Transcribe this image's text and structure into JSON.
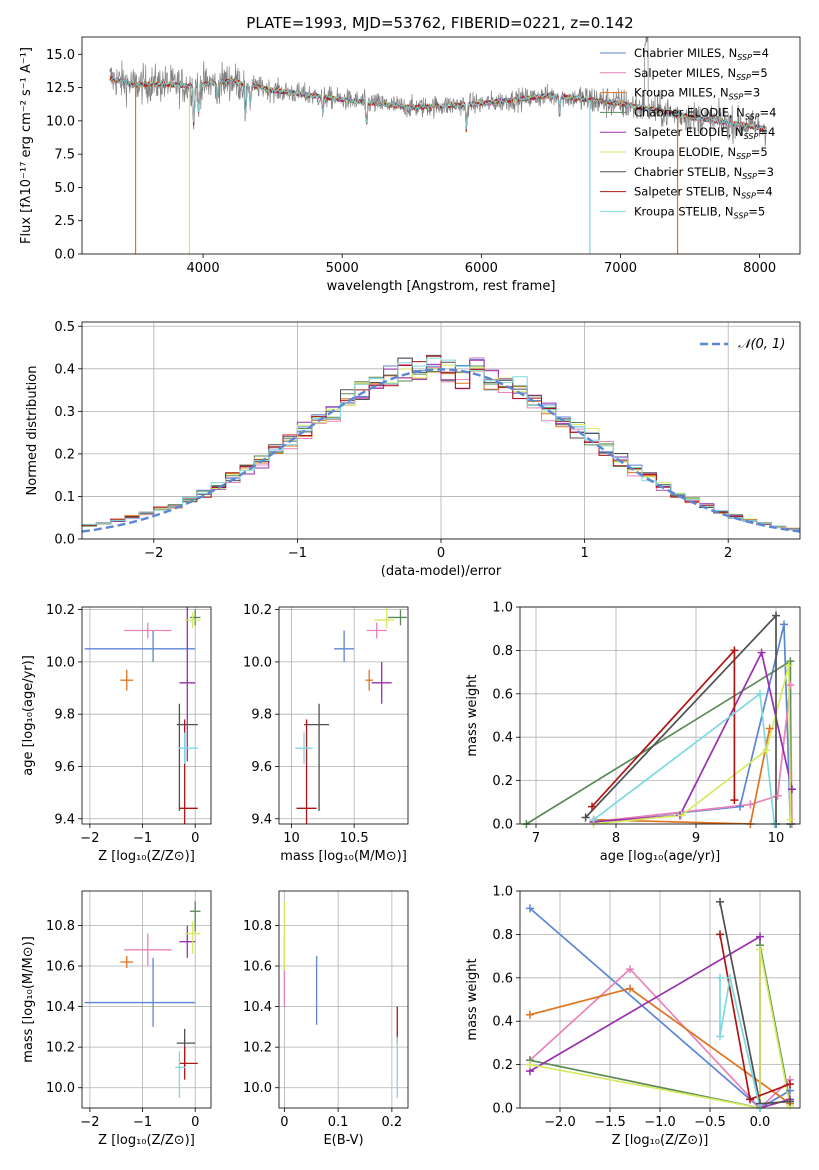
{
  "colors": {
    "Chabrier MILES": "#5b86d6",
    "Salpeter MILES": "#e883b9",
    "Kroupa MILES": "#e0731f",
    "Chabrier ELODIE": "#5a8a5a",
    "Salpeter ELODIE": "#9a2fb0",
    "Kroupa ELODIE": "#d6ea60",
    "Chabrier STELIB": "#505050",
    "Salpeter STELIB": "#b01515",
    "Kroupa STELIB": "#7fd8df",
    "observed": "#808080",
    "normal": "#5b86d6"
  },
  "legend_entries": [
    {
      "base": "Chabrier MILES, N",
      "sub": "SSP",
      "tail": "=4",
      "key": "Chabrier MILES"
    },
    {
      "base": "Salpeter MILES, N",
      "sub": "SSP",
      "tail": "=5",
      "key": "Salpeter MILES"
    },
    {
      "base": "Kroupa MILES, N",
      "sub": "SSP",
      "tail": "=3",
      "key": "Kroupa MILES"
    },
    {
      "base": "Chabrier ELODIE, N",
      "sub": "SSP",
      "tail": "=4",
      "key": "Chabrier ELODIE"
    },
    {
      "base": "Salpeter ELODIE, N",
      "sub": "SSP",
      "tail": "=4",
      "key": "Salpeter ELODIE"
    },
    {
      "base": "Kroupa ELODIE, N",
      "sub": "SSP",
      "tail": "=5",
      "key": "Kroupa ELODIE"
    },
    {
      "base": "Chabrier STELIB, N",
      "sub": "SSP",
      "tail": "=3",
      "key": "Chabrier STELIB"
    },
    {
      "base": "Salpeter STELIB, N",
      "sub": "SSP",
      "tail": "=4",
      "key": "Salpeter STELIB"
    },
    {
      "base": "Kroupa STELIB, N",
      "sub": "SSP",
      "tail": "=5",
      "key": "Kroupa STELIB"
    }
  ],
  "chart_data": [
    {
      "type": "line",
      "title": "PLATE=1993, MJD=53762, FIBERID=0221, z=0.142",
      "xlabel": "wavelength [Angstrom, rest frame]",
      "ylabel": "Flux [fλ10⁻¹⁷ erg cm⁻² s⁻¹ A⁻¹]",
      "xlim": [
        3130,
        8290
      ],
      "ylim": [
        0,
        16.3
      ],
      "xticks": [
        4000,
        5000,
        6000,
        7000,
        8000
      ],
      "yticks": [
        0.0,
        2.5,
        5.0,
        7.5,
        10.0,
        12.5,
        15.0
      ],
      "legend": "top-right",
      "spectrum_shape": {
        "x": [
          3330,
          3500,
          3700,
          3900,
          4200,
          4500,
          5000,
          5500,
          6000,
          6500,
          7000,
          7500,
          8050
        ],
        "y": [
          13.2,
          12.7,
          12.8,
          12.6,
          13.0,
          12.3,
          11.6,
          11.0,
          11.3,
          11.9,
          11.3,
          10.3,
          9.4
        ]
      },
      "absorption_lines": [
        {
          "x": 3934,
          "depth": 3.2
        },
        {
          "x": 3969,
          "depth": 2.3
        },
        {
          "x": 4102,
          "depth": 1.6
        },
        {
          "x": 4305,
          "depth": 3.0
        },
        {
          "x": 4340,
          "depth": 1.5
        },
        {
          "x": 4861,
          "depth": 1.3
        },
        {
          "x": 5175,
          "depth": 2.0
        },
        {
          "x": 5893,
          "depth": 2.0
        },
        {
          "x": 6563,
          "depth": 1.3
        }
      ],
      "model_drops": [
        {
          "x": 3515,
          "key": "Kroupa MILES"
        },
        {
          "x": 3902,
          "key": "Kroupa ELODIE"
        },
        {
          "x": 6780,
          "key": "Kroupa STELIB"
        },
        {
          "x": 7410,
          "key": "Kroupa MILES"
        }
      ]
    },
    {
      "type": "histogram",
      "xlabel": "(data-model)/error",
      "ylabel": "Normed distribution",
      "xlim": [
        -2.5,
        2.5
      ],
      "ylim": [
        0,
        0.51
      ],
      "xticks": [
        -2,
        -1,
        0,
        1,
        2
      ],
      "yticks": [
        0.0,
        0.1,
        0.2,
        0.3,
        0.4,
        0.5
      ],
      "grid": true,
      "legend": "top-right",
      "normal_label": "𝒩(0, 1)",
      "bin_width": 0.1,
      "x_start": -2.5
    },
    {
      "type": "scatter",
      "xlabel": "Z [log₁₀(Z/Z⊙)]",
      "ylabel": "age  [log₁₀(age/yr)]",
      "xlim": [
        -2.15,
        0.3
      ],
      "ylim": [
        9.38,
        10.21
      ],
      "xticks": [
        -2,
        -1,
        0
      ],
      "yticks": [
        9.4,
        9.6,
        9.8,
        10.0,
        10.2
      ],
      "grid": true,
      "points": [
        {
          "key": "Chabrier MILES",
          "x": -0.8,
          "y": 10.05,
          "xerr": [
            1.3,
            0.8
          ],
          "yerr": [
            0.05,
            0.07
          ]
        },
        {
          "key": "Salpeter MILES",
          "x": -0.9,
          "y": 10.12,
          "xerr": [
            0.45,
            0.45
          ],
          "yerr": [
            0.03,
            0.03
          ]
        },
        {
          "key": "Kroupa MILES",
          "x": -1.3,
          "y": 9.93,
          "xerr": [
            0.12,
            0.12
          ],
          "yerr": [
            0.04,
            0.04
          ]
        },
        {
          "key": "Chabrier ELODIE",
          "x": 0.0,
          "y": 10.17,
          "xerr": [
            0.1,
            0.1
          ],
          "yerr": [
            0.03,
            0.03
          ]
        },
        {
          "key": "Salpeter ELODIE",
          "x": -0.15,
          "y": 9.92,
          "xerr": [
            0.15,
            0.15
          ],
          "yerr": [
            0.3,
            0.3
          ]
        },
        {
          "key": "Kroupa ELODIE",
          "x": -0.05,
          "y": 10.16,
          "xerr": [
            0.15,
            0.15
          ],
          "yerr": [
            0.03,
            0.03
          ]
        },
        {
          "key": "Chabrier STELIB",
          "x": -0.3,
          "y": 9.76,
          "xerr": [
            0.05,
            0.35
          ],
          "yerr": [
            0.33,
            0.08
          ]
        },
        {
          "key": "Salpeter STELIB",
          "x": -0.2,
          "y": 9.44,
          "xerr": [
            0.1,
            0.25
          ],
          "yerr": [
            0.06,
            0.34
          ]
        },
        {
          "key": "Kroupa STELIB",
          "x": -0.2,
          "y": 9.67,
          "xerr": [
            0.12,
            0.25
          ],
          "yerr": [
            0.06,
            0.06
          ]
        }
      ]
    },
    {
      "type": "scatter",
      "xlabel": "mass [log₁₀(M/M⊙)]",
      "ylabel": "",
      "xlim": [
        9.9,
        10.93
      ],
      "ylim": [
        9.38,
        10.21
      ],
      "xticks": [
        10.0,
        10.5
      ],
      "yticks": [
        9.4,
        9.6,
        9.8,
        10.0,
        10.2
      ],
      "grid": true,
      "points": [
        {
          "key": "Chabrier MILES",
          "x": 10.42,
          "y": 10.05,
          "xerr": [
            0.08,
            0.08
          ],
          "yerr": [
            0.05,
            0.07
          ]
        },
        {
          "key": "Salpeter MILES",
          "x": 10.68,
          "y": 10.12,
          "xerr": [
            0.08,
            0.08
          ],
          "yerr": [
            0.03,
            0.03
          ]
        },
        {
          "key": "Kroupa MILES",
          "x": 10.62,
          "y": 9.93,
          "xerr": [
            0.03,
            0.03
          ],
          "yerr": [
            0.04,
            0.04
          ]
        },
        {
          "key": "Chabrier ELODIE",
          "x": 10.87,
          "y": 10.17,
          "xerr": [
            0.1,
            0.05
          ],
          "yerr": [
            0.03,
            0.03
          ]
        },
        {
          "key": "Salpeter ELODIE",
          "x": 10.72,
          "y": 9.92,
          "xerr": [
            0.08,
            0.08
          ],
          "yerr": [
            0.08,
            0.08
          ]
        },
        {
          "key": "Kroupa ELODIE",
          "x": 10.76,
          "y": 10.16,
          "xerr": [
            0.1,
            0.06
          ],
          "yerr": [
            0.03,
            0.18
          ]
        },
        {
          "key": "Chabrier STELIB",
          "x": 10.22,
          "y": 9.76,
          "xerr": [
            0.12,
            0.08
          ],
          "yerr": [
            0.33,
            0.08
          ]
        },
        {
          "key": "Salpeter STELIB",
          "x": 10.12,
          "y": 9.44,
          "xerr": [
            0.08,
            0.08
          ],
          "yerr": [
            0.06,
            0.34
          ]
        },
        {
          "key": "Kroupa STELIB",
          "x": 10.1,
          "y": 9.67,
          "xerr": [
            0.07,
            0.07
          ],
          "yerr": [
            0.06,
            0.06
          ]
        }
      ]
    },
    {
      "type": "line",
      "xlabel": "age  [log₁₀(age/yr)]",
      "ylabel": "mass weight",
      "xlim": [
        6.8,
        10.3
      ],
      "ylim": [
        0,
        1.0
      ],
      "xticks": [
        7,
        8,
        9,
        10
      ],
      "yticks": [
        0.0,
        0.2,
        0.4,
        0.6,
        0.8,
        1.0
      ],
      "grid": true,
      "series": [
        {
          "key": "Chabrier MILES",
          "x": [
            7.72,
            9.55,
            10.1,
            10.18
          ],
          "y": [
            0.01,
            0.08,
            0.92,
            0.0
          ]
        },
        {
          "key": "Salpeter MILES",
          "x": [
            7.72,
            9.68,
            10.02,
            10.18,
            10.2
          ],
          "y": [
            0.01,
            0.09,
            0.13,
            0.64,
            0.0
          ]
        },
        {
          "key": "Kroupa MILES",
          "x": [
            7.72,
            9.68,
            9.92
          ],
          "y": [
            0.02,
            0.0,
            0.44
          ]
        },
        {
          "key": "Chabrier ELODIE",
          "x": [
            6.88,
            10.18,
            10.18
          ],
          "y": [
            0.0,
            0.75,
            0.0
          ]
        },
        {
          "key": "Salpeter ELODIE",
          "x": [
            7.72,
            8.8,
            9.82,
            10.2
          ],
          "y": [
            0.01,
            0.04,
            0.79,
            0.16
          ]
        },
        {
          "key": "Kroupa ELODIE",
          "x": [
            7.72,
            8.82,
            9.88,
            10.16,
            10.18
          ],
          "y": [
            0.0,
            0.04,
            0.34,
            0.73,
            0.02
          ]
        },
        {
          "key": "Chabrier STELIB",
          "x": [
            7.62,
            10.0,
            10.0
          ],
          "y": [
            0.03,
            0.96,
            0.0
          ]
        },
        {
          "key": "Salpeter STELIB",
          "x": [
            7.7,
            9.48,
            9.48
          ],
          "y": [
            0.08,
            0.8,
            0.11
          ]
        },
        {
          "key": "Kroupa STELIB",
          "x": [
            7.72,
            9.8,
            9.98
          ],
          "y": [
            0.02,
            0.6,
            0.0
          ]
        }
      ]
    },
    {
      "type": "scatter",
      "xlabel": "Z [log₁₀(Z/Z⊙)]",
      "ylabel": "mass [log₁₀(M/M⊙)]",
      "xlim": [
        -2.15,
        0.3
      ],
      "ylim": [
        9.9,
        10.97
      ],
      "xticks": [
        -2,
        -1,
        0
      ],
      "yticks": [
        10.0,
        10.2,
        10.4,
        10.6,
        10.8
      ],
      "grid": true,
      "points": [
        {
          "key": "Chabrier MILES",
          "x": -0.8,
          "y": 10.42,
          "xerr": [
            1.3,
            0.8
          ],
          "yerr": [
            0.12,
            0.22
          ]
        },
        {
          "key": "Salpeter MILES",
          "x": -0.9,
          "y": 10.68,
          "xerr": [
            0.45,
            0.45
          ],
          "yerr": [
            0.08,
            0.08
          ]
        },
        {
          "key": "Kroupa MILES",
          "x": -1.3,
          "y": 10.62,
          "xerr": [
            0.12,
            0.12
          ],
          "yerr": [
            0.03,
            0.03
          ]
        },
        {
          "key": "Chabrier ELODIE",
          "x": 0.0,
          "y": 10.87,
          "xerr": [
            0.1,
            0.1
          ],
          "yerr": [
            0.1,
            0.05
          ]
        },
        {
          "key": "Salpeter ELODIE",
          "x": -0.15,
          "y": 10.72,
          "xerr": [
            0.15,
            0.15
          ],
          "yerr": [
            0.08,
            0.08
          ]
        },
        {
          "key": "Kroupa ELODIE",
          "x": -0.05,
          "y": 10.76,
          "xerr": [
            0.15,
            0.15
          ],
          "yerr": [
            0.1,
            0.06
          ]
        },
        {
          "key": "Chabrier STELIB",
          "x": -0.2,
          "y": 10.22,
          "xerr": [
            0.15,
            0.2
          ],
          "yerr": [
            0.12,
            0.07
          ]
        },
        {
          "key": "Salpeter STELIB",
          "x": -0.2,
          "y": 10.12,
          "xerr": [
            0.1,
            0.25
          ],
          "yerr": [
            0.08,
            0.08
          ]
        },
        {
          "key": "Kroupa STELIB",
          "x": -0.3,
          "y": 10.1,
          "xerr": [
            0.08,
            0.12
          ],
          "yerr": [
            0.15,
            0.08
          ]
        }
      ]
    },
    {
      "type": "scatter",
      "xlabel": "E(B-V)",
      "ylabel": "",
      "xlim": [
        -0.01,
        0.23
      ],
      "ylim": [
        9.9,
        10.97
      ],
      "xticks": [
        0.0,
        0.1,
        0.2
      ],
      "yticks": [
        10.0,
        10.2,
        10.4,
        10.6,
        10.8
      ],
      "grid": true,
      "points": [
        {
          "key": "Chabrier MILES",
          "x": 0.06,
          "y": 10.48,
          "xerr": [
            0,
            0
          ],
          "yerr": [
            0.17,
            0.17
          ]
        },
        {
          "key": "Salpeter MILES",
          "x": 0.0,
          "y": 10.55,
          "xerr": [
            0,
            0
          ],
          "yerr": [
            0.15,
            0.2
          ]
        },
        {
          "key": "Kroupa ELODIE",
          "x": 0.0,
          "y": 10.75,
          "xerr": [
            0,
            0
          ],
          "yerr": [
            0.17,
            0.17
          ]
        },
        {
          "key": "Salpeter STELIB",
          "x": 0.21,
          "y": 10.3,
          "xerr": [
            0,
            0
          ],
          "yerr": [
            0.08,
            0.1
          ]
        },
        {
          "key": "Kroupa STELIB",
          "x": 0.21,
          "y": 10.1,
          "xerr": [
            0,
            0
          ],
          "yerr": [
            0.15,
            0.15
          ]
        }
      ]
    },
    {
      "type": "line",
      "xlabel": "Z [log₁₀(Z/Z⊙)]",
      "ylabel": "mass weight",
      "xlim": [
        -2.4,
        0.4
      ],
      "ylim": [
        0,
        1.0
      ],
      "xticks": [
        -2.0,
        -1.5,
        -1.0,
        -0.5,
        0.0
      ],
      "yticks": [
        0.0,
        0.2,
        0.4,
        0.6,
        0.8,
        1.0
      ],
      "grid": true,
      "series": [
        {
          "key": "Chabrier MILES",
          "x": [
            -2.3,
            0.0,
            0.3
          ],
          "y": [
            0.92,
            0.0,
            0.08
          ]
        },
        {
          "key": "Salpeter MILES",
          "x": [
            -2.3,
            -1.3,
            0.0,
            0.3
          ],
          "y": [
            0.22,
            0.64,
            0.0,
            0.13
          ]
        },
        {
          "key": "Kroupa MILES",
          "x": [
            -2.3,
            -1.3,
            0.3
          ],
          "y": [
            0.43,
            0.55,
            0.02
          ]
        },
        {
          "key": "Chabrier ELODIE",
          "x": [
            -2.3,
            0.0,
            0.0,
            0.3
          ],
          "y": [
            0.22,
            0.0,
            0.75,
            0.03
          ]
        },
        {
          "key": "Salpeter ELODIE",
          "x": [
            -2.3,
            0.0,
            0.0,
            0.3
          ],
          "y": [
            0.17,
            0.79,
            0.0,
            0.04
          ]
        },
        {
          "key": "Kroupa ELODIE",
          "x": [
            -2.3,
            0.0,
            0.0,
            0.3
          ],
          "y": [
            0.2,
            0.0,
            0.73,
            0.01
          ]
        },
        {
          "key": "Chabrier STELIB",
          "x": [
            -0.4,
            0.0,
            0.3
          ],
          "y": [
            0.95,
            0.02,
            0.03
          ]
        },
        {
          "key": "Salpeter STELIB",
          "x": [
            -0.4,
            -0.1,
            0.3
          ],
          "y": [
            0.8,
            0.04,
            0.11
          ]
        },
        {
          "key": "Kroupa STELIB",
          "x": [
            -0.4,
            -0.4,
            -0.3,
            0.0
          ],
          "y": [
            0.6,
            0.33,
            0.6,
            0.0
          ]
        }
      ]
    }
  ]
}
